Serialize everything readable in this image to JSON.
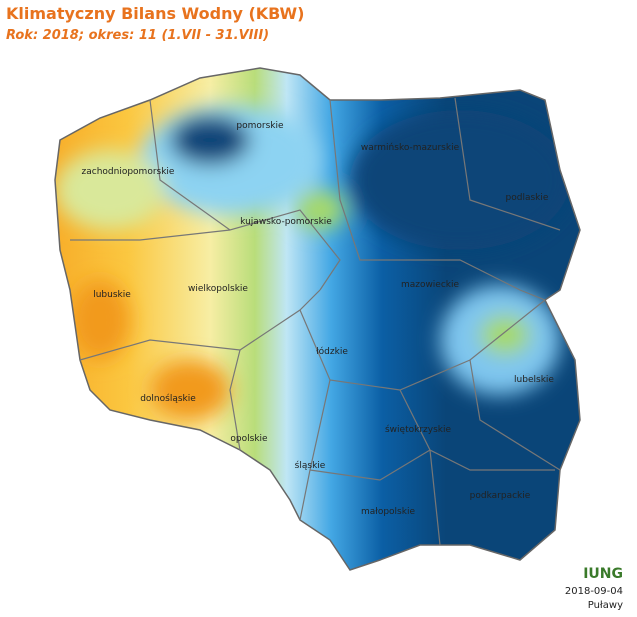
{
  "header": {
    "title": "Klimatyczny Bilans Wodny (KBW)",
    "subtitle": "Rok: 2018; okres: 11 (1.VII - 31.VIII)"
  },
  "regions": [
    "pomorskie",
    "warmińsko-mazurskie",
    "zachodniopomorskie",
    "podlaskie",
    "kujawsko-pomorskie",
    "mazowieckie",
    "wielkopolskie",
    "lubuskie",
    "łódzkie",
    "lubelskie",
    "dolnośląskie",
    "świętokrzyskie",
    "opolskie",
    "śląskie",
    "podkarpackie",
    "małopolskie"
  ],
  "footer": {
    "logo": "IUNG",
    "date": "2018-09-04",
    "place": "Puławy"
  }
}
